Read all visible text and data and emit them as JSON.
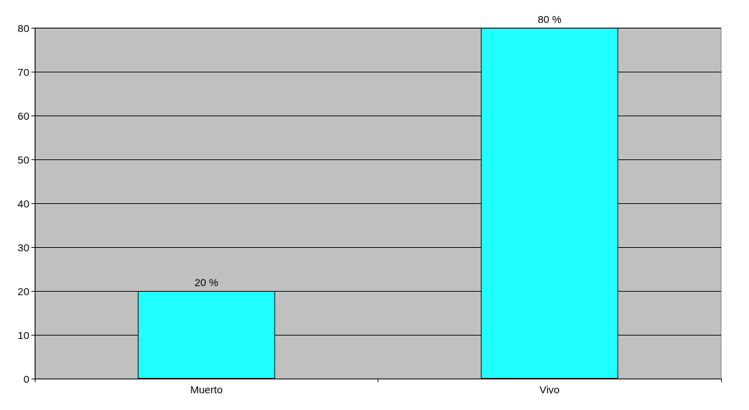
{
  "chart_data": {
    "type": "bar",
    "categories": [
      "Muerto",
      "Vivo"
    ],
    "values": [
      20,
      80
    ],
    "value_labels": [
      "20 %",
      "80 %"
    ],
    "color": "#20ffff",
    "ylim": [
      0,
      80
    ],
    "yticks": [
      0,
      10,
      20,
      30,
      40,
      50,
      60,
      70,
      80
    ],
    "grid": "y"
  }
}
